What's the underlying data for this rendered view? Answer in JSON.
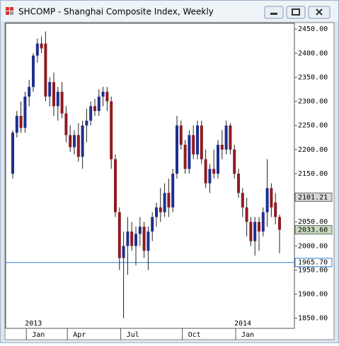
{
  "window": {
    "title": "SHCOMP - Shanghai Composite Index, Weekly"
  },
  "chart_data": {
    "type": "candlestick",
    "categories": [
      null,
      null,
      null,
      null,
      "Jan",
      null,
      null,
      null,
      null,
      null,
      null,
      null,
      null,
      null,
      "Apr",
      null,
      null,
      null,
      null,
      null,
      null,
      null,
      null,
      null,
      null,
      null,
      null,
      "Jul",
      null,
      null,
      null,
      null,
      null,
      null,
      null,
      null,
      null,
      null,
      null,
      null,
      null,
      null,
      "Oct",
      null,
      null,
      null,
      null,
      null,
      null,
      null,
      null,
      null,
      null,
      null,
      null,
      "Jan",
      null,
      null,
      null,
      null,
      null,
      null,
      null,
      null,
      null,
      null
    ],
    "years": [
      null,
      null,
      null,
      null,
      "2013",
      null,
      null,
      null,
      null,
      null,
      null,
      null,
      null,
      null,
      null,
      null,
      null,
      null,
      null,
      null,
      null,
      null,
      null,
      null,
      null,
      null,
      null,
      null,
      null,
      null,
      null,
      null,
      null,
      null,
      null,
      null,
      null,
      null,
      null,
      null,
      null,
      null,
      null,
      null,
      null,
      null,
      null,
      null,
      null,
      null,
      null,
      null,
      null,
      null,
      null,
      "2014",
      null,
      null,
      null,
      null,
      null,
      null,
      null,
      null,
      null,
      null
    ],
    "open": [
      2150,
      2235,
      2270,
      2245,
      2310,
      2330,
      2395,
      2420,
      2420,
      2310,
      2340,
      2290,
      2320,
      2275,
      2230,
      2205,
      2230,
      2185,
      2250,
      2260,
      2290,
      2280,
      2310,
      2320,
      2300,
      2180,
      2070,
      1975,
      2000,
      2030,
      2000,
      2025,
      2040,
      1990,
      2030,
      2060,
      2080,
      2070,
      2110,
      2080,
      2150,
      2250,
      2210,
      2160,
      2230,
      2190,
      2250,
      2180,
      2130,
      2160,
      2150,
      2210,
      2200,
      2250,
      2200,
      2150,
      2110,
      2080,
      2050,
      2010,
      2050,
      2030,
      2070,
      2120,
      2090,
      2060
    ],
    "high": [
      2240,
      2280,
      2300,
      2320,
      2345,
      2400,
      2430,
      2435,
      2445,
      2350,
      2360,
      2330,
      2340,
      2290,
      2250,
      2240,
      2255,
      2260,
      2285,
      2300,
      2305,
      2325,
      2330,
      2330,
      2310,
      2190,
      2080,
      2030,
      2060,
      2050,
      2040,
      2060,
      2050,
      2040,
      2070,
      2090,
      2120,
      2130,
      2140,
      2160,
      2270,
      2260,
      2220,
      2240,
      2250,
      2260,
      2260,
      2200,
      2170,
      2200,
      2220,
      2240,
      2260,
      2255,
      2210,
      2160,
      2120,
      2100,
      2060,
      2060,
      2060,
      2080,
      2180,
      2130,
      2110,
      2065
    ],
    "low": [
      2140,
      2225,
      2235,
      2235,
      2290,
      2320,
      2380,
      2400,
      2300,
      2290,
      2270,
      2260,
      2265,
      2215,
      2195,
      2190,
      2175,
      2160,
      2215,
      2250,
      2270,
      2270,
      2290,
      2280,
      2160,
      2060,
      1950,
      1850,
      1940,
      1990,
      1960,
      2000,
      1975,
      1950,
      2010,
      2040,
      2050,
      2060,
      2060,
      2070,
      2140,
      2200,
      2150,
      2150,
      2180,
      2180,
      2170,
      2120,
      2110,
      2140,
      2140,
      2180,
      2190,
      2190,
      2140,
      2100,
      2060,
      2020,
      2000,
      1980,
      1990,
      2020,
      2040,
      2060,
      2045,
      1985
    ],
    "close": [
      2235,
      2270,
      2245,
      2310,
      2330,
      2395,
      2420,
      2410,
      2310,
      2340,
      2290,
      2320,
      2275,
      2230,
      2205,
      2230,
      2185,
      2250,
      2260,
      2290,
      2280,
      2310,
      2320,
      2300,
      2180,
      2070,
      1975,
      2000,
      2030,
      2000,
      2025,
      2040,
      1990,
      2030,
      2060,
      2080,
      2070,
      2110,
      2080,
      2150,
      2250,
      2210,
      2160,
      2230,
      2190,
      2250,
      2180,
      2130,
      2160,
      2150,
      2210,
      2200,
      2250,
      2200,
      2150,
      2110,
      2080,
      2050,
      2010,
      2050,
      2030,
      2070,
      2120,
      2080,
      2060,
      2033.6
    ],
    "up_color": "#1f2f8f",
    "down_color": "#8e1b22",
    "ylim": [
      1832,
      2462
    ],
    "yticks": [
      {
        "value": 1850,
        "label": "1850.00"
      },
      {
        "value": 1900,
        "label": "1900.00"
      },
      {
        "value": 1950,
        "label": "1950.00"
      },
      {
        "value": 2000,
        "label": "2000.00"
      },
      {
        "value": 2050,
        "label": "2050.00"
      },
      {
        "value": 2100,
        "label": "2100.00"
      },
      {
        "value": 2150,
        "label": "2150.00"
      },
      {
        "value": 2200,
        "label": "2200.00"
      },
      {
        "value": 2250,
        "label": "2250.00"
      },
      {
        "value": 2300,
        "label": "2300.00"
      },
      {
        "value": 2350,
        "label": "2350.00"
      },
      {
        "value": 2400,
        "label": "2400.00"
      },
      {
        "value": 2450,
        "label": "2450.00"
      }
    ],
    "reference_line": {
      "value": 1965.7,
      "label": "1965.70",
      "color": "#2a7fd4"
    },
    "price_markers": [
      {
        "value": 2101.21,
        "label": "2101.21",
        "color": "#d8d8d8"
      },
      {
        "value": 2033.6,
        "label": "2033.60",
        "color": "#c8dcc0"
      }
    ]
  }
}
